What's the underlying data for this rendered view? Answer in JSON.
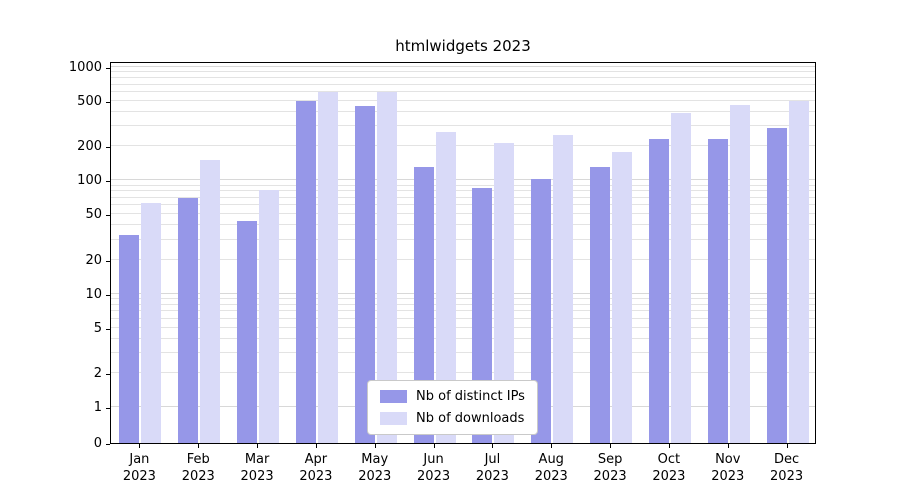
{
  "title": "htmlwidgets 2023",
  "chart_data": {
    "type": "bar",
    "title": "htmlwidgets 2023",
    "categories": [
      "Jan",
      "Feb",
      "Mar",
      "Apr",
      "May",
      "Jun",
      "Jul",
      "Aug",
      "Sep",
      "Oct",
      "Nov",
      "Dec"
    ],
    "year_label": "2023",
    "series": [
      {
        "name": "Nb of distinct IPs",
        "color": "#9697e8",
        "values": [
          33,
          70,
          44,
          500,
          450,
          130,
          85,
          102,
          130,
          230,
          230,
          290
        ]
      },
      {
        "name": "Nb of downloads",
        "color": "#d9daf8",
        "values": [
          63,
          150,
          83,
          600,
          600,
          265,
          215,
          250,
          178,
          390,
          460,
          500
        ]
      }
    ],
    "xlabel": "",
    "ylabel": "",
    "yscale": "log",
    "ylim": [
      0,
      1000
    ],
    "yticks": [
      0,
      1,
      2,
      5,
      10,
      20,
      50,
      100,
      200,
      500,
      1000
    ],
    "grid": "horizontal, log minor gridlines, light gray",
    "legend_position": "bottom-center-inside"
  },
  "colors": {
    "axis": "#000000",
    "gridline": "#e3e3e3",
    "background": "#ffffff",
    "legend_border": "#c9c9c9"
  }
}
